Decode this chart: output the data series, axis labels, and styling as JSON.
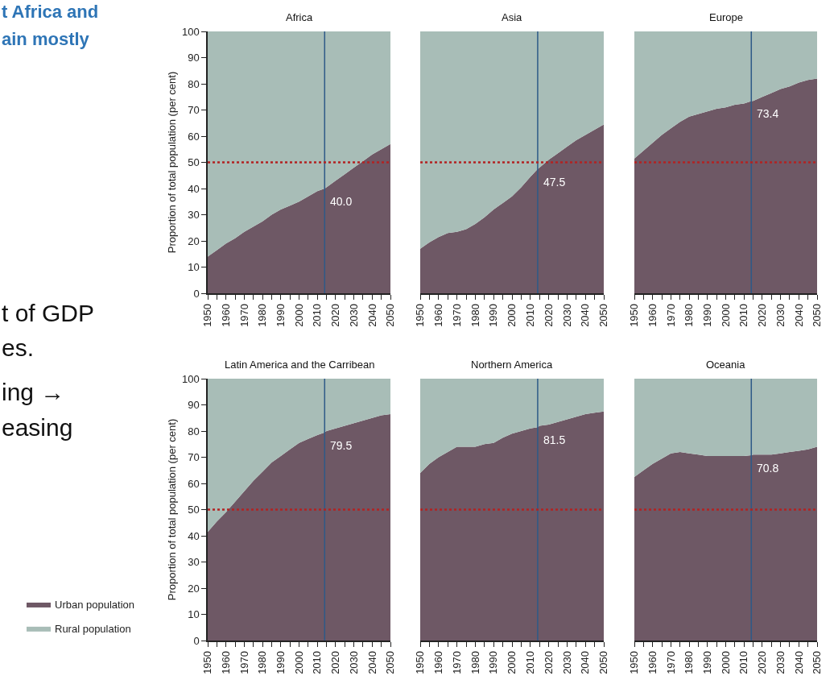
{
  "chart_data": [
    {
      "type": "area",
      "title": "Africa",
      "ylabel": "Proportion of total population (per cent)",
      "stacked": true,
      "legend": "left",
      "annotations": [
        "t Africa and",
        "ain mostly",
        "t of GDP",
        "es.",
        "ing →",
        "easing"
      ],
      "x": [
        1950,
        1955,
        1960,
        1965,
        1970,
        1975,
        1980,
        1985,
        1990,
        1995,
        2000,
        2005,
        2010,
        2014,
        2015,
        2020,
        2025,
        2030,
        2035,
        2040,
        2045,
        2050
      ],
      "series": [
        {
          "name": "Urban population",
          "color": "#6e5865",
          "values": [
            14,
            16.5,
            19,
            21,
            23.5,
            25.5,
            27.5,
            30,
            32,
            33.5,
            35,
            37,
            39,
            40.0,
            40.5,
            43,
            45.5,
            48,
            50.5,
            53,
            55,
            57
          ],
          "value_labels": [
            null,
            null,
            null,
            null,
            null,
            null,
            null,
            null,
            null,
            null,
            null,
            null,
            null,
            "40.0",
            null,
            null,
            null,
            null,
            null,
            null,
            null,
            null
          ]
        },
        {
          "name": "Rural population",
          "color": "#a8bdb7",
          "values": [
            86,
            83.5,
            81,
            79,
            76.5,
            74.5,
            72.5,
            70,
            68,
            66.5,
            65,
            63,
            61,
            60,
            59.5,
            57,
            54.5,
            52,
            49.5,
            47,
            45,
            43
          ]
        }
      ],
      "xlim": [
        1950,
        2050
      ],
      "xticks": [
        1950,
        {
          "value": 1955,
          "label": null
        },
        1960,
        {
          "value": 1965,
          "label": null
        },
        1970,
        {
          "value": 1975,
          "label": null
        },
        1980,
        {
          "value": 1985,
          "label": null
        },
        1990,
        {
          "value": 1995,
          "label": null
        },
        2000,
        {
          "value": 2005,
          "label": null
        },
        2010,
        {
          "value": 2015,
          "label": null
        },
        2020,
        {
          "value": 2025,
          "label": null
        },
        2030,
        {
          "value": 2035,
          "label": null
        },
        2040,
        {
          "value": 2045,
          "label": null
        },
        2050
      ],
      "ylim": [
        0,
        100
      ],
      "yticks": [
        0,
        10,
        20,
        30,
        40,
        50,
        60,
        70,
        80,
        90,
        100
      ],
      "ref_lines": [
        {
          "axis": "x",
          "value": 2014,
          "color": "#2e5a87",
          "line_style": "solid"
        },
        {
          "axis": "y",
          "value": 50,
          "color": "#b22222",
          "line_style": "dotted"
        }
      ]
    },
    {
      "type": "area",
      "title": "Asia",
      "stacked": true,
      "tick_labels": "x",
      "x": [
        1950,
        1955,
        1960,
        1965,
        1970,
        1975,
        1980,
        1985,
        1990,
        1995,
        2000,
        2005,
        2010,
        2014,
        2015,
        2020,
        2025,
        2030,
        2035,
        2040,
        2045,
        2050
      ],
      "series": [
        {
          "color": "#6e5865",
          "values": [
            17,
            19.5,
            21.5,
            23,
            23.5,
            24.5,
            26.5,
            29,
            32,
            34.5,
            37,
            40.5,
            44.5,
            47.5,
            48,
            51,
            53.5,
            56,
            58.5,
            60.5,
            62.5,
            64.5
          ],
          "value_labels": [
            null,
            null,
            null,
            null,
            null,
            null,
            null,
            null,
            null,
            null,
            null,
            null,
            null,
            "47.5",
            null,
            null,
            null,
            null,
            null,
            null,
            null,
            null
          ]
        },
        {
          "color": "#a8bdb7",
          "values": [
            83,
            80.5,
            78.5,
            77,
            76.5,
            75.5,
            73.5,
            71,
            68,
            65.5,
            63,
            59.5,
            55.5,
            52.5,
            52,
            49,
            46.5,
            44,
            41.5,
            39.5,
            37.5,
            35.5
          ]
        }
      ],
      "xlim": [
        1950,
        2050
      ],
      "xticks": [
        1950,
        {
          "value": 1955,
          "label": null
        },
        1960,
        {
          "value": 1965,
          "label": null
        },
        1970,
        {
          "value": 1975,
          "label": null
        },
        1980,
        {
          "value": 1985,
          "label": null
        },
        1990,
        {
          "value": 1995,
          "label": null
        },
        2000,
        {
          "value": 2005,
          "label": null
        },
        2010,
        {
          "value": 2015,
          "label": null
        },
        2020,
        {
          "value": 2025,
          "label": null
        },
        2030,
        {
          "value": 2035,
          "label": null
        },
        2040,
        {
          "value": 2045,
          "label": null
        },
        2050
      ],
      "ylim": [
        0,
        100
      ],
      "yticks": [
        0,
        10,
        20,
        30,
        40,
        50,
        60,
        70,
        80,
        90,
        100
      ],
      "ref_lines": [
        {
          "axis": "x",
          "value": 2014,
          "color": "#2e5a87",
          "line_style": "solid"
        },
        {
          "axis": "y",
          "value": 50,
          "color": "#b22222",
          "line_style": "dotted"
        }
      ]
    },
    {
      "type": "area",
      "title": "Europe",
      "stacked": true,
      "tick_labels": "x",
      "x": [
        1950,
        1955,
        1960,
        1965,
        1970,
        1975,
        1980,
        1985,
        1990,
        1995,
        2000,
        2005,
        2010,
        2014,
        2015,
        2020,
        2025,
        2030,
        2035,
        2040,
        2045,
        2050
      ],
      "series": [
        {
          "color": "#6e5865",
          "values": [
            51.5,
            54.5,
            57.5,
            60.5,
            63,
            65.5,
            67.5,
            68.5,
            69.5,
            70.5,
            71,
            72,
            72.5,
            73.4,
            73.5,
            75,
            76.5,
            78,
            79,
            80.5,
            81.5,
            82
          ],
          "value_labels": [
            null,
            null,
            null,
            null,
            null,
            null,
            null,
            null,
            null,
            null,
            null,
            null,
            null,
            "73.4",
            null,
            null,
            null,
            null,
            null,
            null,
            null,
            null
          ]
        },
        {
          "color": "#a8bdb7",
          "values": [
            48.5,
            45.5,
            42.5,
            39.5,
            37,
            34.5,
            32.5,
            31.5,
            30.5,
            29.5,
            29,
            28,
            27.5,
            26.6,
            26.5,
            25,
            23.5,
            22,
            21,
            19.5,
            18.5,
            18
          ]
        }
      ],
      "xlim": [
        1950,
        2050
      ],
      "xticks": [
        1950,
        {
          "value": 1955,
          "label": null
        },
        1960,
        {
          "value": 1965,
          "label": null
        },
        1970,
        {
          "value": 1975,
          "label": null
        },
        1980,
        {
          "value": 1985,
          "label": null
        },
        1990,
        {
          "value": 1995,
          "label": null
        },
        2000,
        {
          "value": 2005,
          "label": null
        },
        2010,
        {
          "value": 2015,
          "label": null
        },
        2020,
        {
          "value": 2025,
          "label": null
        },
        2030,
        {
          "value": 2035,
          "label": null
        },
        2040,
        {
          "value": 2045,
          "label": null
        },
        2050
      ],
      "ylim": [
        0,
        100
      ],
      "yticks": [
        0,
        10,
        20,
        30,
        40,
        50,
        60,
        70,
        80,
        90,
        100
      ],
      "ref_lines": [
        {
          "axis": "x",
          "value": 2014,
          "color": "#2e5a87",
          "line_style": "solid"
        },
        {
          "axis": "y",
          "value": 50,
          "color": "#b22222",
          "line_style": "dotted"
        }
      ]
    },
    {
      "type": "area",
      "title": "Latin America and the Carribean",
      "ylabel": "Proportion of total population (per cent)",
      "stacked": true,
      "x": [
        1950,
        1955,
        1960,
        1965,
        1970,
        1975,
        1980,
        1985,
        1990,
        1995,
        2000,
        2005,
        2010,
        2014,
        2015,
        2020,
        2025,
        2030,
        2035,
        2040,
        2045,
        2050
      ],
      "series": [
        {
          "color": "#6e5865",
          "values": [
            41.5,
            45.5,
            49,
            53,
            57,
            61,
            64.5,
            68,
            70.5,
            73,
            75.5,
            77,
            78.5,
            79.5,
            80,
            81,
            82,
            83,
            84,
            85,
            86,
            86.5
          ],
          "value_labels": [
            null,
            null,
            null,
            null,
            null,
            null,
            null,
            null,
            null,
            null,
            null,
            null,
            null,
            "79.5",
            null,
            null,
            null,
            null,
            null,
            null,
            null,
            null
          ]
        },
        {
          "color": "#a8bdb7",
          "values": [
            58.5,
            54.5,
            51,
            47,
            43,
            39,
            35.5,
            32,
            29.5,
            27,
            24.5,
            23,
            21.5,
            20.5,
            20,
            19,
            18,
            17,
            16,
            15,
            14,
            13.5
          ]
        }
      ],
      "xlim": [
        1950,
        2050
      ],
      "xticks": [
        1950,
        {
          "value": 1955,
          "label": null
        },
        1960,
        {
          "value": 1965,
          "label": null
        },
        1970,
        {
          "value": 1975,
          "label": null
        },
        1980,
        {
          "value": 1985,
          "label": null
        },
        1990,
        {
          "value": 1995,
          "label": null
        },
        2000,
        {
          "value": 2005,
          "label": null
        },
        2010,
        {
          "value": 2015,
          "label": null
        },
        2020,
        {
          "value": 2025,
          "label": null
        },
        2030,
        {
          "value": 2035,
          "label": null
        },
        2040,
        {
          "value": 2045,
          "label": null
        },
        2050
      ],
      "ylim": [
        0,
        100
      ],
      "yticks": [
        0,
        10,
        20,
        30,
        40,
        50,
        60,
        70,
        80,
        90,
        100
      ],
      "ref_lines": [
        {
          "axis": "x",
          "value": 2014,
          "color": "#2e5a87",
          "line_style": "solid"
        },
        {
          "axis": "y",
          "value": 50,
          "color": "#b22222",
          "line_style": "dotted"
        }
      ]
    },
    {
      "type": "area",
      "title": "Northern America",
      "stacked": true,
      "tick_labels": "x",
      "x": [
        1950,
        1955,
        1960,
        1965,
        1970,
        1975,
        1980,
        1985,
        1990,
        1995,
        2000,
        2005,
        2010,
        2014,
        2015,
        2020,
        2025,
        2030,
        2035,
        2040,
        2045,
        2050
      ],
      "series": [
        {
          "color": "#6e5865",
          "values": [
            64,
            67.5,
            70,
            72,
            74,
            74,
            74,
            75,
            75.5,
            77.5,
            79,
            80,
            81,
            81.5,
            82,
            82.5,
            83.5,
            84.5,
            85.5,
            86.5,
            87,
            87.5
          ],
          "value_labels": [
            null,
            null,
            null,
            null,
            null,
            null,
            null,
            null,
            null,
            null,
            null,
            null,
            null,
            "81.5",
            null,
            null,
            null,
            null,
            null,
            null,
            null,
            null
          ]
        },
        {
          "color": "#a8bdb7",
          "values": [
            36,
            32.5,
            30,
            28,
            26,
            26,
            26,
            25,
            24.5,
            22.5,
            21,
            20,
            19,
            18.5,
            18,
            17.5,
            16.5,
            15.5,
            14.5,
            13.5,
            13,
            12.5
          ]
        }
      ],
      "xlim": [
        1950,
        2050
      ],
      "xticks": [
        1950,
        {
          "value": 1955,
          "label": null
        },
        1960,
        {
          "value": 1965,
          "label": null
        },
        1970,
        {
          "value": 1975,
          "label": null
        },
        1980,
        {
          "value": 1985,
          "label": null
        },
        1990,
        {
          "value": 1995,
          "label": null
        },
        2000,
        {
          "value": 2005,
          "label": null
        },
        2010,
        {
          "value": 2015,
          "label": null
        },
        2020,
        {
          "value": 2025,
          "label": null
        },
        2030,
        {
          "value": 2035,
          "label": null
        },
        2040,
        {
          "value": 2045,
          "label": null
        },
        2050
      ],
      "ylim": [
        0,
        100
      ],
      "yticks": [
        0,
        10,
        20,
        30,
        40,
        50,
        60,
        70,
        80,
        90,
        100
      ],
      "ref_lines": [
        {
          "axis": "x",
          "value": 2014,
          "color": "#2e5a87",
          "line_style": "solid"
        },
        {
          "axis": "y",
          "value": 50,
          "color": "#b22222",
          "line_style": "dotted"
        }
      ]
    },
    {
      "type": "area",
      "title": "Oceania",
      "stacked": true,
      "tick_labels": "x",
      "x": [
        1950,
        1955,
        1960,
        1965,
        1970,
        1975,
        1980,
        1985,
        1990,
        1995,
        2000,
        2005,
        2010,
        2014,
        2015,
        2020,
        2025,
        2030,
        2035,
        2040,
        2045,
        2050
      ],
      "series": [
        {
          "color": "#6e5865",
          "values": [
            62.5,
            65,
            67.5,
            69.5,
            71.5,
            72,
            71.5,
            71,
            70.5,
            70.5,
            70.5,
            70.5,
            70.5,
            70.8,
            71,
            71,
            71,
            71.5,
            72,
            72.5,
            73,
            74
          ],
          "value_labels": [
            null,
            null,
            null,
            null,
            null,
            null,
            null,
            null,
            null,
            null,
            null,
            null,
            null,
            "70.8",
            null,
            null,
            null,
            null,
            null,
            null,
            null,
            null
          ]
        },
        {
          "color": "#a8bdb7",
          "values": [
            37.5,
            35,
            32.5,
            30.5,
            28.5,
            28,
            28.5,
            29,
            29.5,
            29.5,
            29.5,
            29.5,
            29.5,
            29.2,
            29,
            29,
            29,
            28.5,
            28,
            27.5,
            27,
            26
          ]
        }
      ],
      "xlim": [
        1950,
        2050
      ],
      "xticks": [
        1950,
        {
          "value": 1955,
          "label": null
        },
        1960,
        {
          "value": 1965,
          "label": null
        },
        1970,
        {
          "value": 1975,
          "label": null
        },
        1980,
        {
          "value": 1985,
          "label": null
        },
        1990,
        {
          "value": 1995,
          "label": null
        },
        2000,
        {
          "value": 2005,
          "label": null
        },
        2010,
        {
          "value": 2015,
          "label": null
        },
        2020,
        {
          "value": 2025,
          "label": null
        },
        2030,
        {
          "value": 2035,
          "label": null
        },
        2040,
        {
          "value": 2045,
          "label": null
        },
        2050
      ],
      "ylim": [
        0,
        100
      ],
      "yticks": [
        0,
        10,
        20,
        30,
        40,
        50,
        60,
        70,
        80,
        90,
        100
      ],
      "ref_lines": [
        {
          "axis": "x",
          "value": 2014,
          "color": "#2e5a87",
          "line_style": "solid"
        },
        {
          "axis": "y",
          "value": 50,
          "color": "#b22222",
          "line_style": "dotted"
        }
      ]
    }
  ]
}
